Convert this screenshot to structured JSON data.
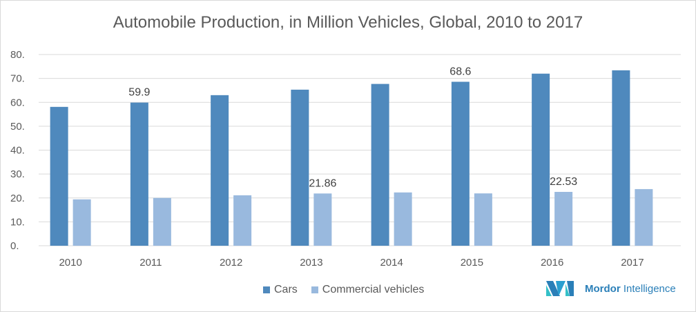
{
  "chart_data": {
    "type": "bar",
    "title": "Automobile Production, in Million Vehicles, Global, 2010 to 2017",
    "categories": [
      "2010",
      "2011",
      "2012",
      "2013",
      "2014",
      "2015",
      "2016",
      "2017"
    ],
    "series": [
      {
        "name": "Cars",
        "color": "#4f89bd",
        "values": [
          58.1,
          59.9,
          63.0,
          65.3,
          67.7,
          68.6,
          72.0,
          73.4
        ]
      },
      {
        "name": "Commercial vehicles",
        "color": "#99b9de",
        "values": [
          19.4,
          20.0,
          21.1,
          21.86,
          22.3,
          21.9,
          22.53,
          23.7
        ]
      }
    ],
    "data_labels": [
      {
        "series": 0,
        "index": 1,
        "text": "59.9"
      },
      {
        "series": 0,
        "index": 5,
        "text": "68.6"
      },
      {
        "series": 1,
        "index": 3,
        "text": "21.86"
      },
      {
        "series": 1,
        "index": 6,
        "text": "22.53"
      }
    ],
    "yticks": [
      "0.",
      "10.",
      "20.",
      "30.",
      "40.",
      "50.",
      "60.",
      "70.",
      "80."
    ],
    "ylim": [
      0,
      80
    ],
    "grid": true,
    "legend": "bottom"
  },
  "logo": {
    "bold": "Mordor",
    "rest": " Intelligence"
  }
}
